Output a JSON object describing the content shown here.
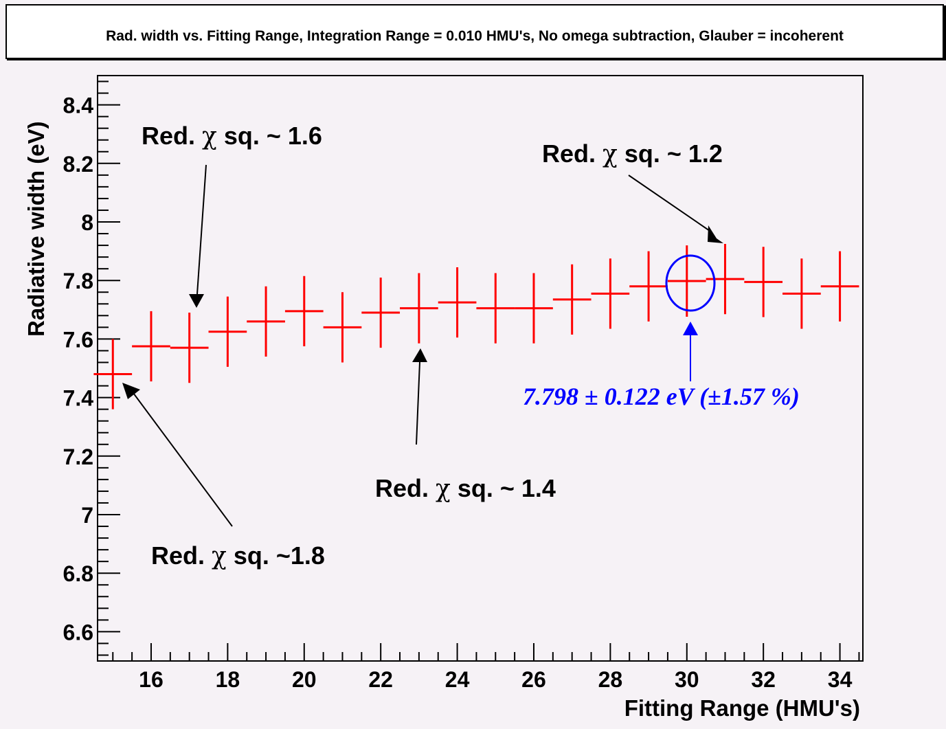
{
  "title": "Rad. width vs. Fitting Range, Integration Range = 0.010 HMU's, No omega subtraction, Glauber = incoherent",
  "colors": {
    "series": "#ff0000",
    "highlight": "#0000ff",
    "axis": "#000000",
    "background": "#f6f2f6"
  },
  "chart_data": {
    "type": "scatter",
    "xlabel": "Fitting Range (HMU's)",
    "ylabel": "Radiative width (eV)",
    "xlim": [
      14.6,
      34.6
    ],
    "ylim": [
      6.5,
      8.5
    ],
    "x_ticks": [
      "16",
      "18",
      "20",
      "22",
      "24",
      "26",
      "28",
      "30",
      "32",
      "34"
    ],
    "y_ticks": [
      "6.6",
      "6.8",
      "7",
      "7.2",
      "7.4",
      "7.6",
      "7.8",
      "8",
      "8.2",
      "8.4"
    ],
    "grid": false,
    "series": [
      {
        "x": [
          15,
          16,
          17,
          18,
          19,
          20,
          21,
          22,
          23,
          24,
          25,
          26,
          27,
          28,
          29,
          30,
          31,
          32,
          33,
          34
        ],
        "y": [
          7.48,
          7.575,
          7.57,
          7.625,
          7.66,
          7.695,
          7.64,
          7.69,
          7.705,
          7.725,
          7.705,
          7.705,
          7.735,
          7.755,
          7.78,
          7.798,
          7.805,
          7.795,
          7.755,
          7.78
        ],
        "y_err": [
          0.12,
          0.12,
          0.12,
          0.12,
          0.12,
          0.12,
          0.12,
          0.12,
          0.12,
          0.12,
          0.12,
          0.12,
          0.12,
          0.12,
          0.12,
          0.122,
          0.12,
          0.12,
          0.12,
          0.12
        ],
        "x_err": 0.5
      }
    ],
    "highlight": {
      "x": 30,
      "y": 7.798,
      "label": "7.798 ± 0.122 eV (±1.57 %)"
    },
    "annotations": [
      {
        "pre": "Red. ",
        "chi": "χ",
        "post": " sq. ~ 1.6",
        "target_x": 17
      },
      {
        "pre": "Red. ",
        "chi": "χ",
        "post": " sq. ~ 1.2",
        "target_x": 31
      },
      {
        "pre": "Red. ",
        "chi": "χ",
        "post": " sq. ~ 1.4",
        "target_x": 23
      },
      {
        "pre": "Red. ",
        "chi": "χ",
        "post": " sq. ~1.8",
        "target_x": 15
      }
    ]
  }
}
